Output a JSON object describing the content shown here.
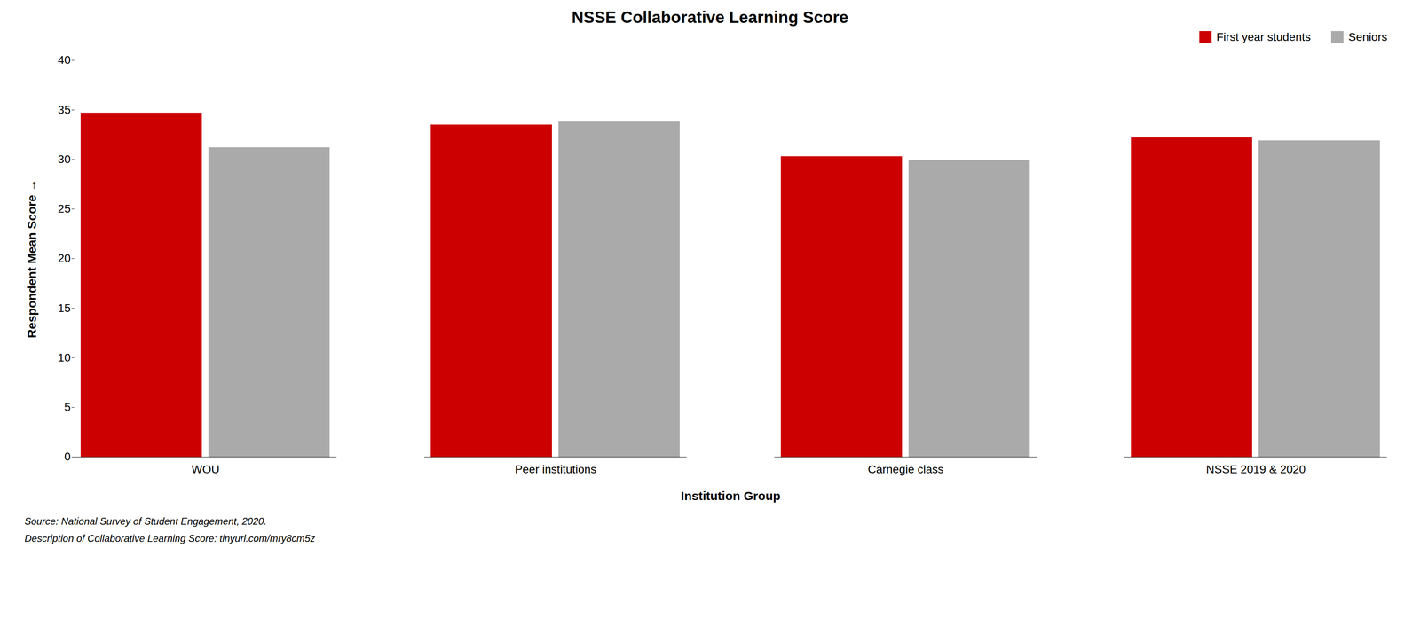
{
  "chart_data": {
    "type": "bar",
    "title": "NSSE Collaborative Learning Score",
    "xlabel": "Institution Group",
    "ylabel": "Respondent Mean Score",
    "categories": [
      "WOU",
      "Peer institutions",
      "Carnegie class",
      "NSSE 2019 & 2020"
    ],
    "series": [
      {
        "name": "First year students",
        "color": "#CC0000",
        "values": [
          34.7,
          33.5,
          30.3,
          32.2
        ]
      },
      {
        "name": "Seniors",
        "color": "#AAAAAA",
        "values": [
          31.2,
          33.8,
          29.9,
          31.9
        ]
      }
    ],
    "ylim": [
      0,
      40
    ],
    "yticks": [
      0,
      5,
      10,
      15,
      20,
      25,
      30,
      35,
      40
    ],
    "grid": false,
    "legend": "upper right",
    "annotations": [
      "Source: National Survey of Student Engagement, 2020.",
      "Description of Collaborative Learning Score: tinyurl.com/mry8cm5z"
    ]
  }
}
